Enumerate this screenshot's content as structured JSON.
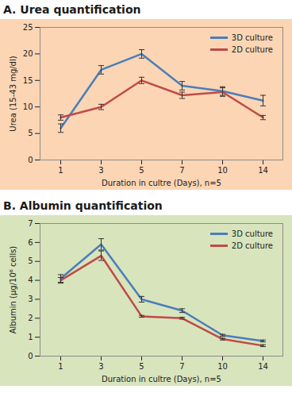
{
  "chart_data": [
    {
      "type": "line",
      "title": "A. Urea quantification",
      "xlabel": "Duration in cultre (Days), n=5",
      "ylabel": "Urea (15-43 mg/dl)",
      "categories": [
        "1",
        "3",
        "5",
        "7",
        "10",
        "14"
      ],
      "series": [
        {
          "name": "3D culture",
          "color": "#4a7ebb",
          "values": [
            6,
            17,
            20,
            14,
            13,
            11.2
          ],
          "errors": [
            0.8,
            0.8,
            0.8,
            0.8,
            0.8,
            1
          ]
        },
        {
          "name": "2D culture",
          "color": "#be4b48",
          "values": [
            8,
            10,
            15,
            12.2,
            12.8,
            8
          ],
          "errors": [
            0.5,
            0.5,
            0.6,
            0.6,
            0.8,
            0.4
          ]
        }
      ],
      "ylim": [
        0,
        25
      ],
      "yticks": [
        0,
        5,
        10,
        15,
        20,
        25
      ],
      "grid": false,
      "legend": "top-right"
    },
    {
      "type": "line",
      "title": "B. Albumin quantification",
      "xlabel": "Duration in cultre (Days), n=5",
      "ylabel": "Albumin (µg/10⁶ cells)",
      "categories": [
        "1",
        "3",
        "5",
        "7",
        "10",
        "14"
      ],
      "series": [
        {
          "name": "3D culture",
          "color": "#4a7ebb",
          "values": [
            4.1,
            5.9,
            3.0,
            2.4,
            1.1,
            0.8
          ],
          "errors": [
            0.2,
            0.3,
            0.15,
            0.1,
            0.05,
            0.05
          ]
        },
        {
          "name": "2D culture",
          "color": "#be4b48",
          "values": [
            4.0,
            5.3,
            2.1,
            2.0,
            0.9,
            0.55
          ],
          "errors": [
            0.15,
            0.25,
            0.05,
            0.05,
            0.05,
            0.05
          ]
        }
      ],
      "ylim": [
        0,
        7
      ],
      "yticks": [
        0,
        1,
        2,
        3,
        4,
        5,
        6,
        7
      ],
      "grid": false,
      "legend": "top-right"
    }
  ]
}
